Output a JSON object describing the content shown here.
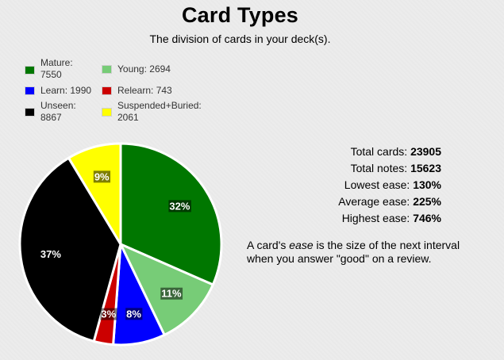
{
  "chart_data": {
    "type": "pie",
    "title": "Card Types",
    "subtitle": "The division of cards in your deck(s).",
    "slices": [
      {
        "name": "Mature",
        "value": 7550,
        "label": "32%",
        "color": "#007700"
      },
      {
        "name": "Young",
        "value": 2694,
        "label": "11%",
        "color": "#77cc77"
      },
      {
        "name": "Learn",
        "value": 1990,
        "label": "8%",
        "color": "#0000ff"
      },
      {
        "name": "Relearn",
        "value": 743,
        "label": "3%",
        "color": "#cc0000"
      },
      {
        "name": "Unseen",
        "value": 8867,
        "label": "37%",
        "color": "#000000"
      },
      {
        "name": "Suspended+Buried",
        "value": 2061,
        "label": "9%",
        "color": "#ffff00"
      }
    ],
    "legend": [
      {
        "line1": "Mature:",
        "line2": "7550",
        "color": "#007700"
      },
      {
        "line1": "Young: 2694",
        "line2": "",
        "color": "#77cc77"
      },
      {
        "line1": "Learn: 1990",
        "line2": "",
        "color": "#0000ff"
      },
      {
        "line1": "Relearn: 743",
        "line2": "",
        "color": "#cc0000"
      },
      {
        "line1": "Unseen:",
        "line2": "8867",
        "color": "#000000"
      },
      {
        "line1": "Suspended+Buried:",
        "line2": "2061",
        "color": "#ffff00"
      }
    ],
    "legend_position": "top-left"
  },
  "stats": {
    "total_cards_label": "Total cards: ",
    "total_cards_value": "23905",
    "total_notes_label": "Total notes: ",
    "total_notes_value": "15623",
    "lowest_ease_label": "Lowest ease: ",
    "lowest_ease_value": "130%",
    "average_ease_label": "Average ease: ",
    "average_ease_value": "225%",
    "highest_ease_label": "Highest ease: ",
    "highest_ease_value": "746%"
  },
  "note": {
    "before": "A card's ",
    "emphasis": "ease",
    "after": " is the size of the next interval when you answer \"good\" on a review."
  }
}
